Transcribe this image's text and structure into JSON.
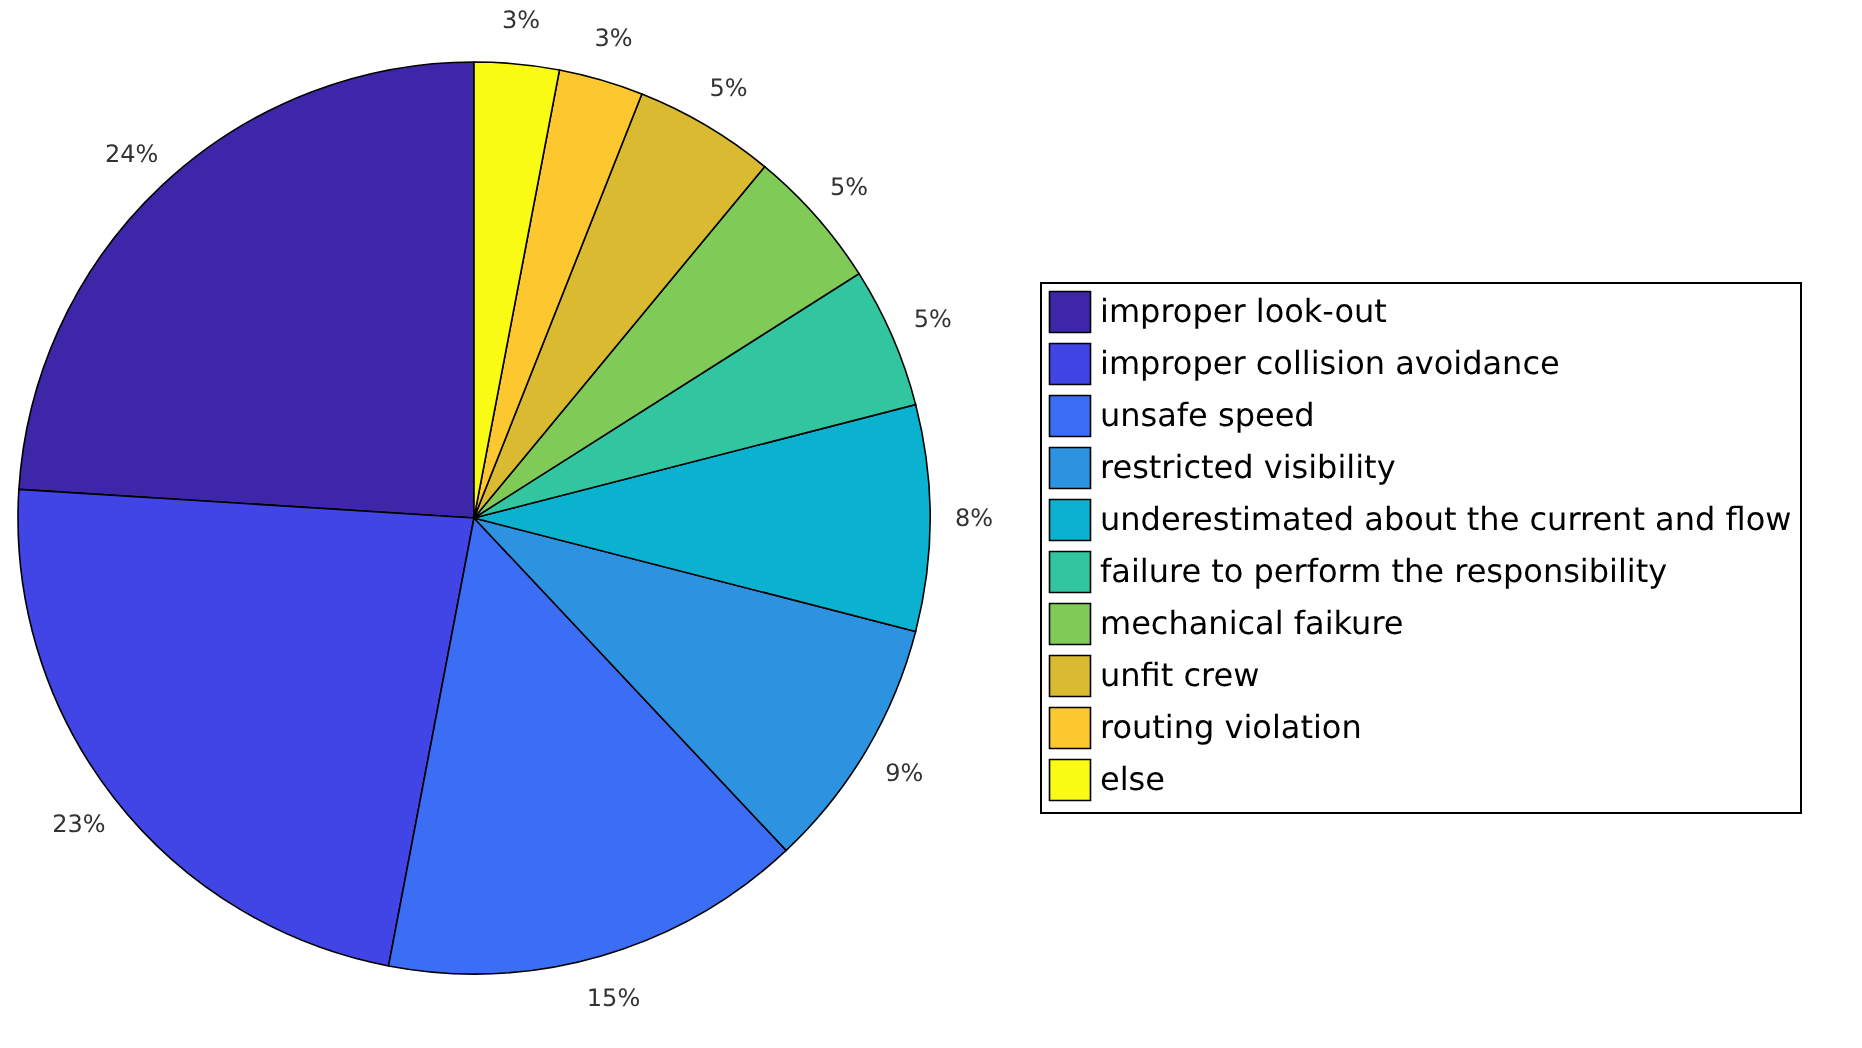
{
  "chart_data": {
    "type": "pie",
    "categories": [
      "improper look-out",
      "improper collision avoidance",
      "unsafe speed",
      "restricted visibility",
      "underestimated about the current and flow",
      "failure to perform the responsibility",
      "mechanical faikure",
      "unfit crew",
      "routing violation",
      "else"
    ],
    "values": [
      24,
      23,
      15,
      9,
      8,
      5,
      5,
      5,
      3,
      3
    ],
    "value_labels": [
      "24%",
      "23%",
      "15%",
      "9%",
      "8%",
      "5%",
      "5%",
      "5%",
      "3%",
      "3%"
    ],
    "colors": [
      "#3e26a8",
      "#4245e6",
      "#3b6ef5",
      "#2d93e0",
      "#0bb2d0",
      "#32c6a0",
      "#80cb58",
      "#d9ba30",
      "#fdc72f",
      "#f9fb15"
    ],
    "legend": "right"
  }
}
